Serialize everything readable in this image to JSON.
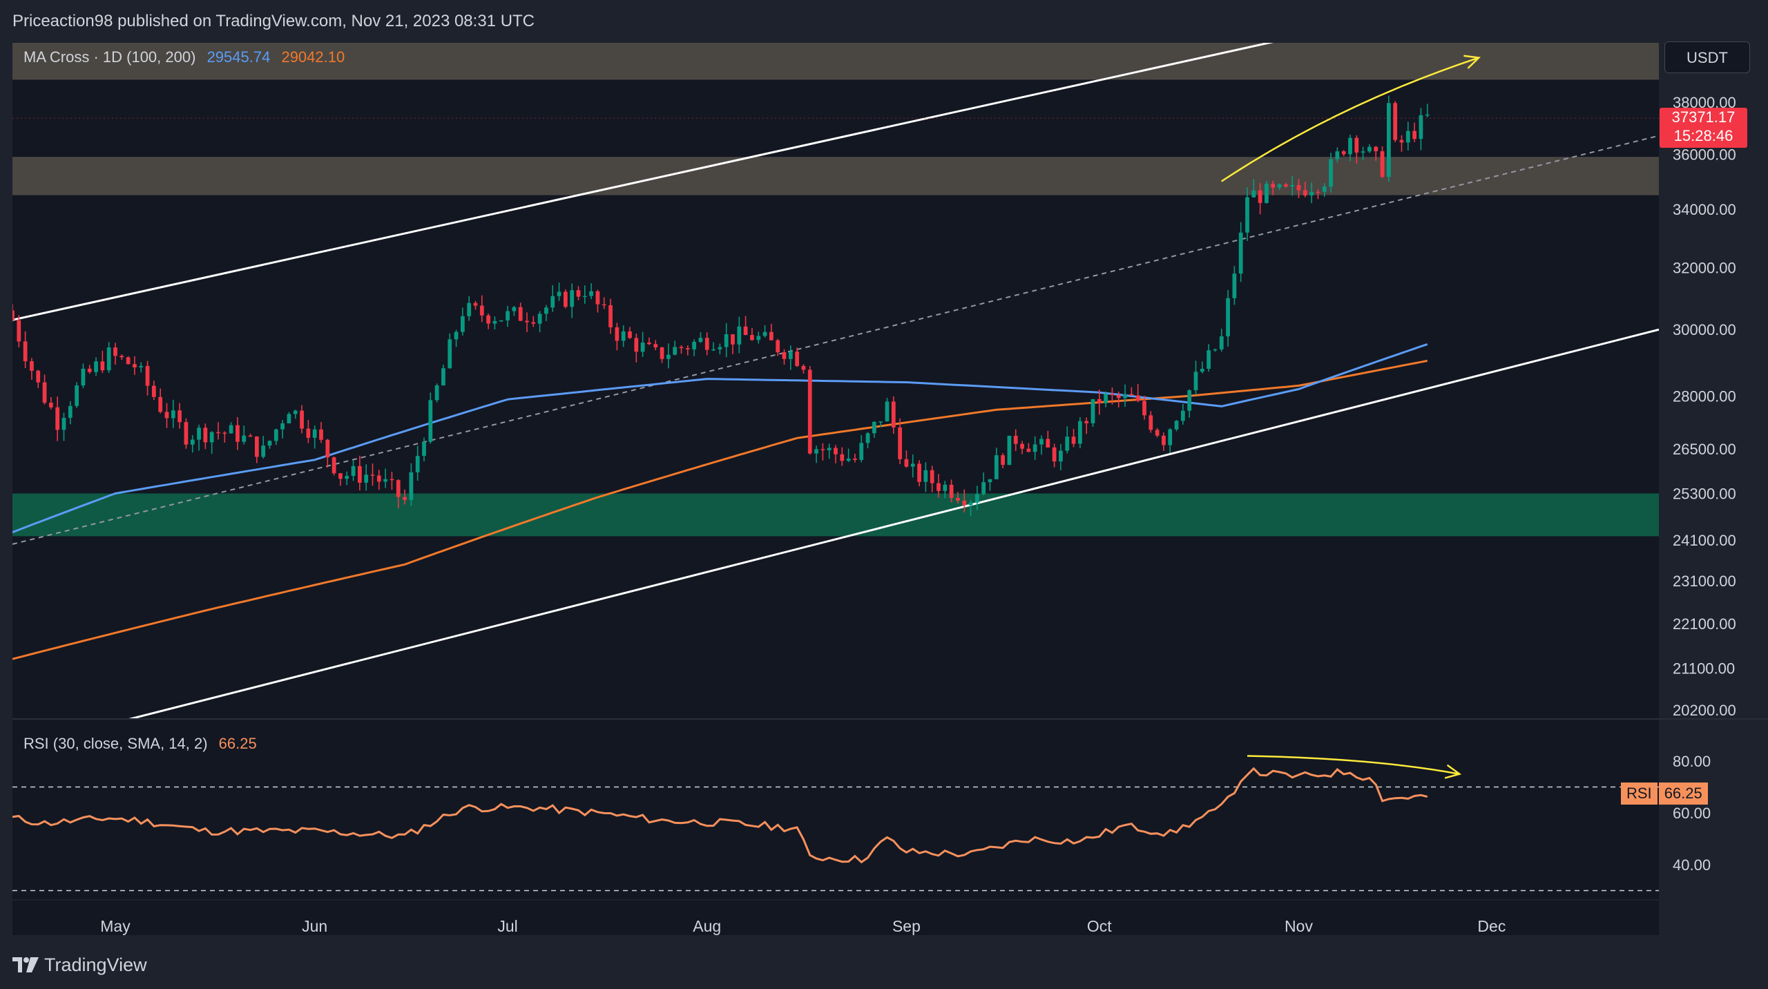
{
  "header": {
    "published_text": "Priceaction98 published on TradingView.com, Nov 21, 2023 08:31 UTC"
  },
  "brand": {
    "name": "TradingView"
  },
  "currency": "USDT",
  "ma_legend": {
    "label": "MA Cross · 1D (100, 200)",
    "ma100_value": "29545.74",
    "ma200_value": "29042.10",
    "ma100_color": "#5b9cf6",
    "ma200_color": "#f2792a"
  },
  "last_price": {
    "value": "37371.17",
    "countdown": "15:28:46",
    "color": "#f23645"
  },
  "rsi_legend": {
    "label": "RSI (30, close, SMA, 14, 2)",
    "value": "66.25",
    "badge_label": "RSI",
    "color": "#f7915c"
  },
  "colors": {
    "background": "#131722",
    "up": "#089981",
    "down": "#f23645",
    "support_zone": "#0f5a45",
    "resistance_zone": "#4a4743",
    "annotation": "#ffeb3b",
    "channel": "#ffffff"
  },
  "chart_data": {
    "type": "candlestick",
    "x_ticks": [
      "May",
      "Jun",
      "Jul",
      "Aug",
      "Sep",
      "Oct",
      "Nov",
      "Dec"
    ],
    "x_tick_dates": [
      "2023-05-01",
      "2023-06-01",
      "2023-07-01",
      "2023-08-01",
      "2023-09-01",
      "2023-10-01",
      "2023-11-01",
      "2023-12-01"
    ],
    "x_range": [
      "2023-04-15",
      "2023-12-27"
    ],
    "y_scale": "log",
    "y_ticks": [
      "38000.00",
      "36000.00",
      "34000.00",
      "32000.00",
      "30000.00",
      "28000.00",
      "26500.00",
      "25300.00",
      "24100.00",
      "23100.00",
      "22100.00",
      "21100.00",
      "20200.00"
    ],
    "y_tick_values": [
      38000,
      36000,
      34000,
      32000,
      30000,
      28000,
      26500,
      25300,
      24100,
      23100,
      22100,
      21100,
      20200
    ],
    "close_anchors": [
      [
        "2023-04-15",
        30300
      ],
      [
        "2023-04-19",
        28300
      ],
      [
        "2023-04-22",
        27300
      ],
      [
        "2023-04-26",
        28500
      ],
      [
        "2023-04-30",
        29200
      ],
      [
        "2023-05-04",
        28900
      ],
      [
        "2023-05-08",
        27700
      ],
      [
        "2023-05-12",
        26900
      ],
      [
        "2023-05-16",
        27000
      ],
      [
        "2023-05-20",
        26900
      ],
      [
        "2023-05-24",
        26400
      ],
      [
        "2023-05-28",
        27700
      ],
      [
        "2023-06-01",
        26900
      ],
      [
        "2023-06-05",
        25800
      ],
      [
        "2023-06-10",
        25800
      ],
      [
        "2023-06-15",
        25100
      ],
      [
        "2023-06-20",
        28200
      ],
      [
        "2023-06-24",
        30600
      ],
      [
        "2023-06-30",
        30400
      ],
      [
        "2023-07-05",
        30500
      ],
      [
        "2023-07-13",
        31300
      ],
      [
        "2023-07-18",
        29900
      ],
      [
        "2023-07-24",
        29200
      ],
      [
        "2023-08-01",
        29700
      ],
      [
        "2023-08-08",
        29800
      ],
      [
        "2023-08-14",
        29300
      ],
      [
        "2023-08-16",
        29000
      ],
      [
        "2023-08-17",
        26600
      ],
      [
        "2023-08-24",
        26200
      ],
      [
        "2023-08-29",
        27700
      ],
      [
        "2023-09-01",
        25900
      ],
      [
        "2023-09-11",
        25200
      ],
      [
        "2023-09-18",
        26800
      ],
      [
        "2023-09-25",
        26300
      ],
      [
        "2023-10-01",
        27900
      ],
      [
        "2023-10-06",
        27900
      ],
      [
        "2023-10-11",
        26800
      ],
      [
        "2023-10-16",
        28500
      ],
      [
        "2023-10-20",
        29700
      ],
      [
        "2023-10-23",
        33000
      ],
      [
        "2023-10-24",
        34500
      ],
      [
        "2023-10-31",
        34600
      ],
      [
        "2023-11-05",
        35100
      ],
      [
        "2023-11-09",
        36700
      ],
      [
        "2023-11-14",
        35500
      ],
      [
        "2023-11-15",
        37900
      ],
      [
        "2023-11-16",
        36200
      ],
      [
        "2023-11-21",
        37371
      ]
    ],
    "ma100_anchors": [
      [
        "2023-04-15",
        24300
      ],
      [
        "2023-05-01",
        25300
      ],
      [
        "2023-06-01",
        26200
      ],
      [
        "2023-07-01",
        27900
      ],
      [
        "2023-08-01",
        28500
      ],
      [
        "2023-09-01",
        28400
      ],
      [
        "2023-10-01",
        28100
      ],
      [
        "2023-10-20",
        27700
      ],
      [
        "2023-11-01",
        28200
      ],
      [
        "2023-11-21",
        29546
      ]
    ],
    "ma200_anchors": [
      [
        "2023-04-15",
        21300
      ],
      [
        "2023-05-15",
        22400
      ],
      [
        "2023-06-15",
        23500
      ],
      [
        "2023-07-15",
        25200
      ],
      [
        "2023-08-15",
        26800
      ],
      [
        "2023-09-15",
        27600
      ],
      [
        "2023-10-15",
        28000
      ],
      [
        "2023-11-01",
        28300
      ],
      [
        "2023-11-21",
        29042
      ]
    ],
    "rsi": {
      "y_ticks": [
        "80.00",
        "60.00",
        "40.00"
      ],
      "y_tick_values": [
        80,
        60,
        40
      ],
      "y_range": [
        30,
        88
      ],
      "bands": [
        70,
        30
      ],
      "anchors": [
        [
          "2023-04-15",
          58
        ],
        [
          "2023-04-20",
          56
        ],
        [
          "2023-04-30",
          58
        ],
        [
          "2023-05-05",
          57
        ],
        [
          "2023-05-15",
          53
        ],
        [
          "2023-06-01",
          53
        ],
        [
          "2023-06-15",
          51
        ],
        [
          "2023-06-24",
          62
        ],
        [
          "2023-07-05",
          62
        ],
        [
          "2023-07-15",
          60
        ],
        [
          "2023-07-25",
          57
        ],
        [
          "2023-08-05",
          56
        ],
        [
          "2023-08-15",
          54
        ],
        [
          "2023-08-17",
          43
        ],
        [
          "2023-08-25",
          42
        ],
        [
          "2023-08-29",
          50
        ],
        [
          "2023-09-01",
          45
        ],
        [
          "2023-09-11",
          44
        ],
        [
          "2023-09-20",
          50
        ],
        [
          "2023-09-28",
          49
        ],
        [
          "2023-10-05",
          55
        ],
        [
          "2023-10-12",
          52
        ],
        [
          "2023-10-20",
          62
        ],
        [
          "2023-10-24",
          76
        ],
        [
          "2023-11-01",
          74
        ],
        [
          "2023-11-09",
          76
        ],
        [
          "2023-11-13",
          72
        ],
        [
          "2023-11-14",
          65
        ],
        [
          "2023-11-17",
          66
        ],
        [
          "2023-11-21",
          66.25
        ]
      ]
    },
    "zones": [
      {
        "name": "resistance-upper",
        "low": 38900,
        "high": 40600,
        "color": "#4a4743"
      },
      {
        "name": "resistance-lower",
        "low": 34500,
        "high": 35900,
        "color": "#4a4743"
      },
      {
        "name": "support",
        "low": 24200,
        "high": 25300,
        "color": "#0f5a45"
      }
    ],
    "trendlines": [
      {
        "name": "channel-top",
        "points": [
          [
            "2023-04-15",
            30300
          ],
          [
            "2023-11-06",
            41000
          ]
        ],
        "style": "solid",
        "color": "#ffffff"
      },
      {
        "name": "channel-bottom",
        "points": [
          [
            "2023-04-30",
            19900
          ],
          [
            "2023-12-27",
            30000
          ]
        ],
        "style": "solid",
        "color": "#ffffff"
      },
      {
        "name": "channel-mid",
        "points": [
          [
            "2023-04-15",
            24000
          ],
          [
            "2023-12-27",
            36700
          ]
        ],
        "style": "dashed",
        "color": "#9598a1"
      }
    ],
    "annotations": [
      {
        "name": "price-arrow",
        "pane": "price",
        "points": [
          [
            "2023-10-20",
            35000
          ],
          [
            "2023-11-07",
            37900
          ],
          [
            "2023-11-29",
            39800
          ]
        ],
        "color": "#ffeb3b"
      },
      {
        "name": "rsi-arrow",
        "pane": "rsi",
        "points": [
          [
            "2023-10-24",
            82
          ],
          [
            "2023-11-13",
            81
          ],
          [
            "2023-11-26",
            75
          ]
        ],
        "color": "#ffeb3b"
      }
    ]
  }
}
